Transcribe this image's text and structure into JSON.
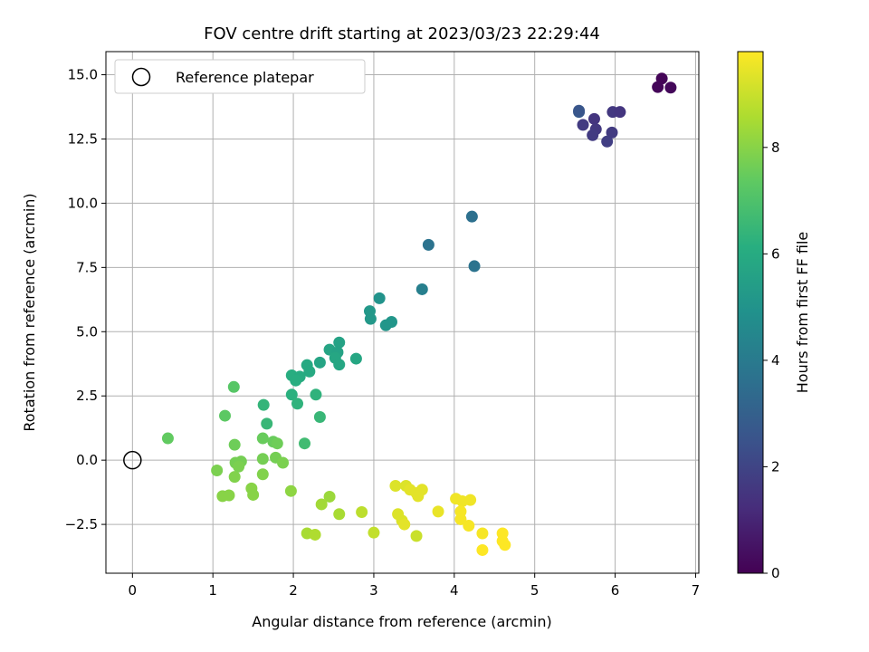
{
  "chart_data": {
    "type": "scatter",
    "title": "FOV centre drift starting at 2023/03/23 22:29:44",
    "xlabel": "Angular distance from reference (arcmin)",
    "ylabel": "Rotation from reference (arcmin)",
    "xlim": [
      -0.33,
      7.04
    ],
    "ylim": [
      -4.4,
      15.9
    ],
    "xticks": [
      0,
      1,
      2,
      3,
      4,
      5,
      6,
      7
    ],
    "yticks": [
      -2.5,
      0.0,
      2.5,
      5.0,
      7.5,
      10.0,
      12.5,
      15.0
    ],
    "xtick_labels": [
      "0",
      "1",
      "2",
      "3",
      "4",
      "5",
      "6",
      "7"
    ],
    "ytick_labels": [
      "−2.5",
      "0.0",
      "2.5",
      "5.0",
      "7.5",
      "10.0",
      "12.5",
      "15.0"
    ],
    "grid": true,
    "legend": {
      "position": "upper-left",
      "entries": [
        {
          "label": "Reference platepar",
          "marker": "open-circle"
        }
      ]
    },
    "reference_point": {
      "x": 0,
      "y": 0
    },
    "colorbar": {
      "label": "Hours from first FF file",
      "colormap": "viridis",
      "range": [
        0,
        9.8
      ],
      "ticks": [
        0,
        2,
        4,
        6,
        8
      ],
      "tick_labels": [
        "0",
        "2",
        "4",
        "6",
        "8"
      ]
    },
    "points": [
      {
        "x": 6.58,
        "y": 14.85,
        "h": 0.1
      },
      {
        "x": 6.53,
        "y": 14.52,
        "h": 0.15
      },
      {
        "x": 6.69,
        "y": 14.5,
        "h": 0.2
      },
      {
        "x": 5.55,
        "y": 13.55,
        "h": 2.8
      },
      {
        "x": 5.55,
        "y": 13.6,
        "h": 2.6
      },
      {
        "x": 5.6,
        "y": 13.05,
        "h": 1.7
      },
      {
        "x": 5.74,
        "y": 13.28,
        "h": 1.5
      },
      {
        "x": 5.76,
        "y": 12.88,
        "h": 1.6
      },
      {
        "x": 5.72,
        "y": 12.65,
        "h": 1.7
      },
      {
        "x": 5.97,
        "y": 13.55,
        "h": 1.6
      },
      {
        "x": 6.06,
        "y": 13.55,
        "h": 1.5
      },
      {
        "x": 5.96,
        "y": 12.75,
        "h": 1.7
      },
      {
        "x": 5.9,
        "y": 12.4,
        "h": 1.8
      },
      {
        "x": 4.22,
        "y": 9.48,
        "h": 3.6
      },
      {
        "x": 3.68,
        "y": 8.38,
        "h": 3.7
      },
      {
        "x": 4.25,
        "y": 7.55,
        "h": 3.7
      },
      {
        "x": 3.6,
        "y": 6.65,
        "h": 4.2
      },
      {
        "x": 3.07,
        "y": 6.3,
        "h": 5.0
      },
      {
        "x": 2.95,
        "y": 5.8,
        "h": 5.2
      },
      {
        "x": 2.96,
        "y": 5.5,
        "h": 5.2
      },
      {
        "x": 3.22,
        "y": 5.38,
        "h": 5.1
      },
      {
        "x": 3.15,
        "y": 5.25,
        "h": 5.1
      },
      {
        "x": 2.57,
        "y": 4.58,
        "h": 5.6
      },
      {
        "x": 2.45,
        "y": 4.3,
        "h": 5.7
      },
      {
        "x": 2.55,
        "y": 4.2,
        "h": 5.6
      },
      {
        "x": 2.52,
        "y": 3.98,
        "h": 5.8
      },
      {
        "x": 2.78,
        "y": 3.95,
        "h": 5.8
      },
      {
        "x": 2.33,
        "y": 3.8,
        "h": 5.7
      },
      {
        "x": 2.57,
        "y": 3.72,
        "h": 5.8
      },
      {
        "x": 2.17,
        "y": 3.7,
        "h": 5.9
      },
      {
        "x": 2.2,
        "y": 3.45,
        "h": 5.9
      },
      {
        "x": 1.98,
        "y": 3.3,
        "h": 6.1
      },
      {
        "x": 2.08,
        "y": 3.25,
        "h": 6.0
      },
      {
        "x": 2.03,
        "y": 3.1,
        "h": 6.1
      },
      {
        "x": 1.98,
        "y": 2.55,
        "h": 6.2
      },
      {
        "x": 2.28,
        "y": 2.55,
        "h": 6.3
      },
      {
        "x": 2.05,
        "y": 2.2,
        "h": 6.3
      },
      {
        "x": 1.63,
        "y": 2.15,
        "h": 6.4
      },
      {
        "x": 2.33,
        "y": 1.68,
        "h": 6.5
      },
      {
        "x": 1.67,
        "y": 1.42,
        "h": 6.5
      },
      {
        "x": 2.14,
        "y": 0.65,
        "h": 6.7
      },
      {
        "x": 1.26,
        "y": 2.85,
        "h": 7.2
      },
      {
        "x": 1.15,
        "y": 1.73,
        "h": 7.3
      },
      {
        "x": 0.44,
        "y": 0.85,
        "h": 7.4
      },
      {
        "x": 1.62,
        "y": 0.85,
        "h": 7.5
      },
      {
        "x": 1.75,
        "y": 0.72,
        "h": 7.5
      },
      {
        "x": 1.8,
        "y": 0.65,
        "h": 7.6
      },
      {
        "x": 1.27,
        "y": 0.6,
        "h": 7.6
      },
      {
        "x": 1.62,
        "y": 0.05,
        "h": 7.7
      },
      {
        "x": 1.78,
        "y": 0.1,
        "h": 7.7
      },
      {
        "x": 1.87,
        "y": -0.1,
        "h": 7.8
      },
      {
        "x": 1.28,
        "y": -0.1,
        "h": 7.7
      },
      {
        "x": 1.35,
        "y": -0.05,
        "h": 7.7
      },
      {
        "x": 1.32,
        "y": -0.25,
        "h": 7.8
      },
      {
        "x": 1.05,
        "y": -0.4,
        "h": 7.8
      },
      {
        "x": 1.27,
        "y": -0.65,
        "h": 7.9
      },
      {
        "x": 1.62,
        "y": -0.55,
        "h": 7.9
      },
      {
        "x": 1.48,
        "y": -1.1,
        "h": 8.0
      },
      {
        "x": 1.5,
        "y": -1.35,
        "h": 8.0
      },
      {
        "x": 1.97,
        "y": -1.2,
        "h": 8.1
      },
      {
        "x": 1.12,
        "y": -1.4,
        "h": 8.0
      },
      {
        "x": 1.2,
        "y": -1.37,
        "h": 8.0
      },
      {
        "x": 2.45,
        "y": -1.42,
        "h": 8.3
      },
      {
        "x": 2.35,
        "y": -1.72,
        "h": 8.4
      },
      {
        "x": 2.57,
        "y": -2.1,
        "h": 8.5
      },
      {
        "x": 2.17,
        "y": -2.85,
        "h": 8.5
      },
      {
        "x": 2.27,
        "y": -2.9,
        "h": 8.6
      },
      {
        "x": 2.85,
        "y": -2.02,
        "h": 8.8
      },
      {
        "x": 3.0,
        "y": -2.82,
        "h": 8.9
      },
      {
        "x": 3.53,
        "y": -2.95,
        "h": 9.0
      },
      {
        "x": 3.27,
        "y": -1.0,
        "h": 9.3
      },
      {
        "x": 3.4,
        "y": -1.0,
        "h": 9.3
      },
      {
        "x": 3.45,
        "y": -1.15,
        "h": 9.4
      },
      {
        "x": 3.53,
        "y": -1.28,
        "h": 9.4
      },
      {
        "x": 3.6,
        "y": -1.15,
        "h": 9.4
      },
      {
        "x": 3.55,
        "y": -1.4,
        "h": 9.4
      },
      {
        "x": 3.3,
        "y": -2.1,
        "h": 9.3
      },
      {
        "x": 3.35,
        "y": -2.35,
        "h": 9.3
      },
      {
        "x": 3.38,
        "y": -2.5,
        "h": 9.4
      },
      {
        "x": 3.8,
        "y": -2.0,
        "h": 9.5
      },
      {
        "x": 4.02,
        "y": -1.5,
        "h": 9.6
      },
      {
        "x": 4.1,
        "y": -1.6,
        "h": 9.6
      },
      {
        "x": 4.2,
        "y": -1.55,
        "h": 9.6
      },
      {
        "x": 4.08,
        "y": -2.0,
        "h": 9.7
      },
      {
        "x": 4.08,
        "y": -2.3,
        "h": 9.7
      },
      {
        "x": 4.18,
        "y": -2.55,
        "h": 9.7
      },
      {
        "x": 4.35,
        "y": -2.85,
        "h": 9.7
      },
      {
        "x": 4.35,
        "y": -3.5,
        "h": 9.8
      },
      {
        "x": 4.6,
        "y": -2.85,
        "h": 9.8
      },
      {
        "x": 4.6,
        "y": -3.15,
        "h": 9.8
      },
      {
        "x": 4.63,
        "y": -3.3,
        "h": 9.8
      }
    ]
  }
}
